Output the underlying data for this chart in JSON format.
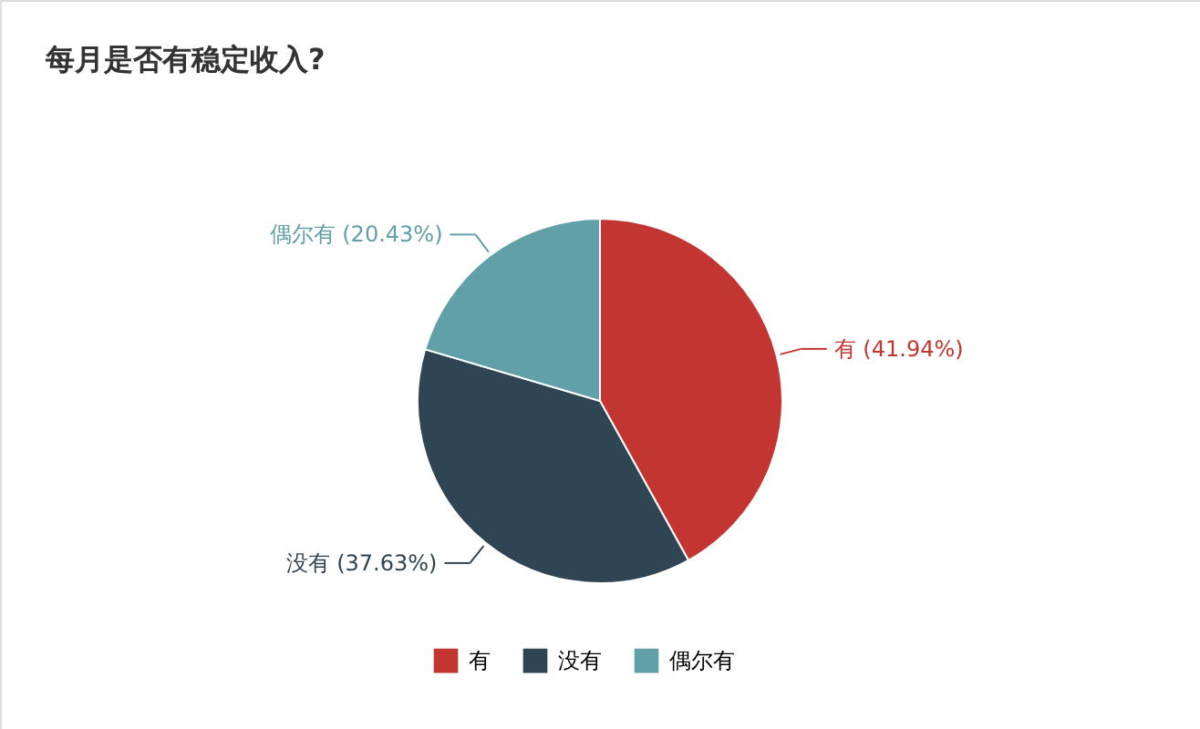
{
  "chart_data": {
    "type": "pie",
    "title": "每月是否有稳定收入?",
    "categories": [
      "有",
      "没有",
      "偶尔有"
    ],
    "values": [
      41.94,
      37.63,
      20.43
    ],
    "colors": [
      "#c23531",
      "#2f4554",
      "#61a0a8"
    ],
    "value_labels": [
      "有 (41.94%)",
      "没有 (37.63%)",
      "偶尔有 (20.43%)"
    ],
    "legend": "bottom"
  }
}
